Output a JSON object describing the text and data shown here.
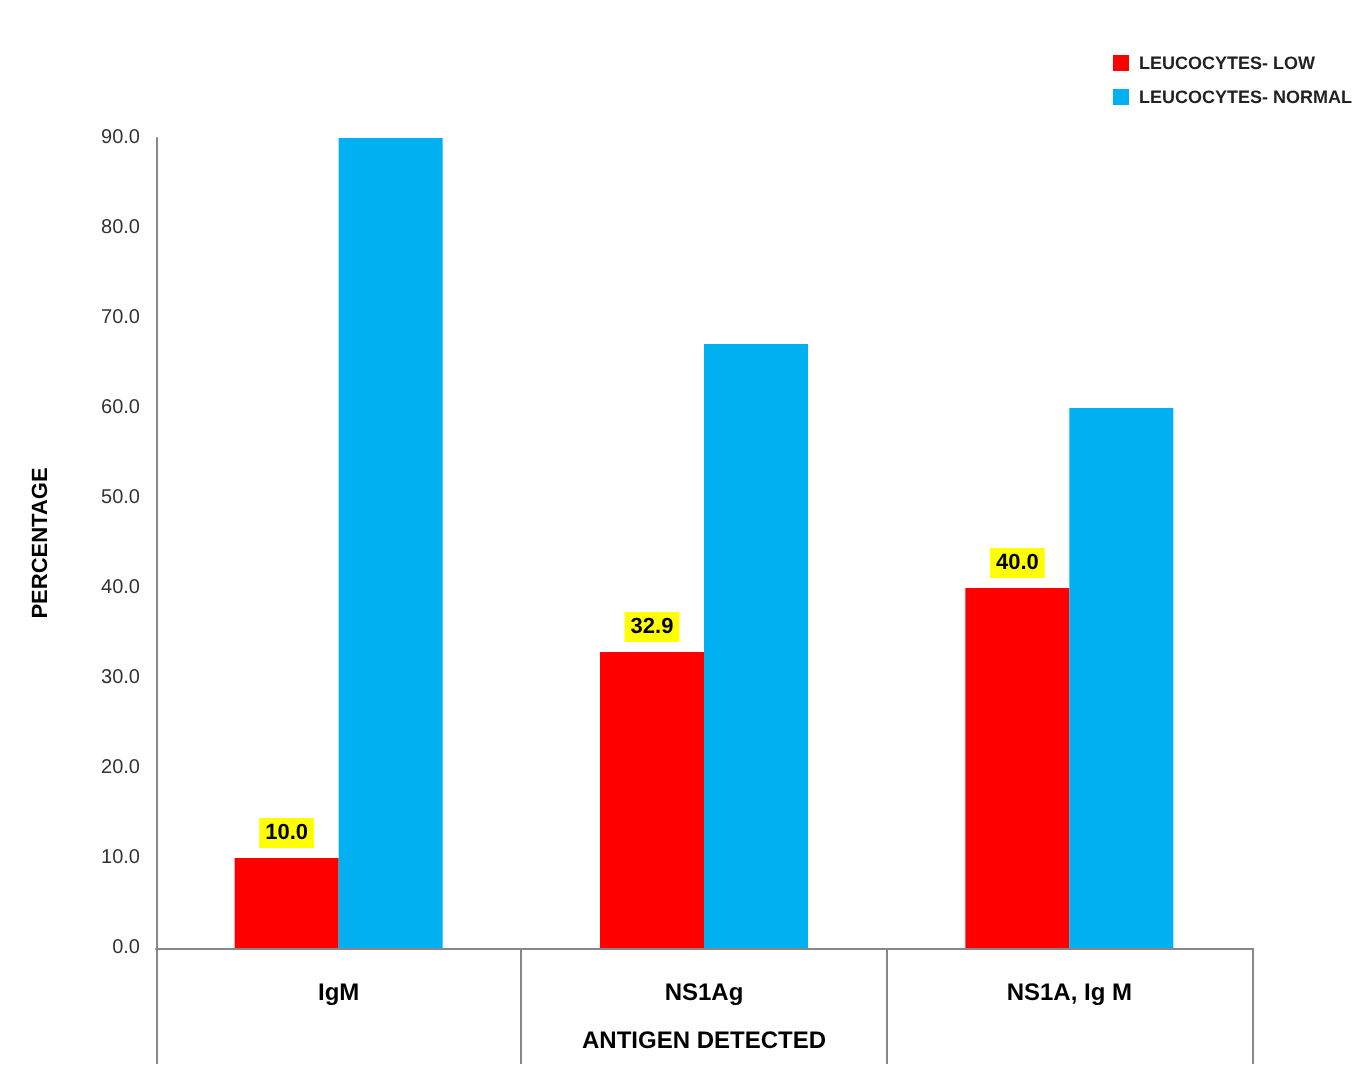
{
  "chart_data": {
    "type": "bar",
    "xlabel": "ANTIGEN DETECTED",
    "ylabel": "PERCENTAGE",
    "categories": [
      "IgM",
      "NS1Ag",
      "NS1A, Ig M"
    ],
    "series": [
      {
        "name": "LEUCOCYTES- LOW",
        "color": "#ff0000",
        "values": [
          10.0,
          32.9,
          40.0
        ],
        "value_labels": [
          "10.0",
          "32.9",
          "40.0"
        ]
      },
      {
        "name": "LEUCOCYTES- NORMAL",
        "color": "#00b0f0",
        "values": [
          90.0,
          67.1,
          60.0
        ]
      }
    ],
    "ylim": [
      0,
      90
    ],
    "yticks": [
      {
        "value": 0,
        "label": "0.0"
      },
      {
        "value": 10,
        "label": "10.0"
      },
      {
        "value": 20,
        "label": "20.0"
      },
      {
        "value": 30,
        "label": "30.0"
      },
      {
        "value": 40,
        "label": "40.0"
      },
      {
        "value": 50,
        "label": "50.0"
      },
      {
        "value": 60,
        "label": "60.0"
      },
      {
        "value": 70,
        "label": "70.0"
      },
      {
        "value": 80,
        "label": "80.0"
      },
      {
        "value": 90,
        "label": "90.0"
      }
    ],
    "grid": false,
    "legend": "top right"
  }
}
